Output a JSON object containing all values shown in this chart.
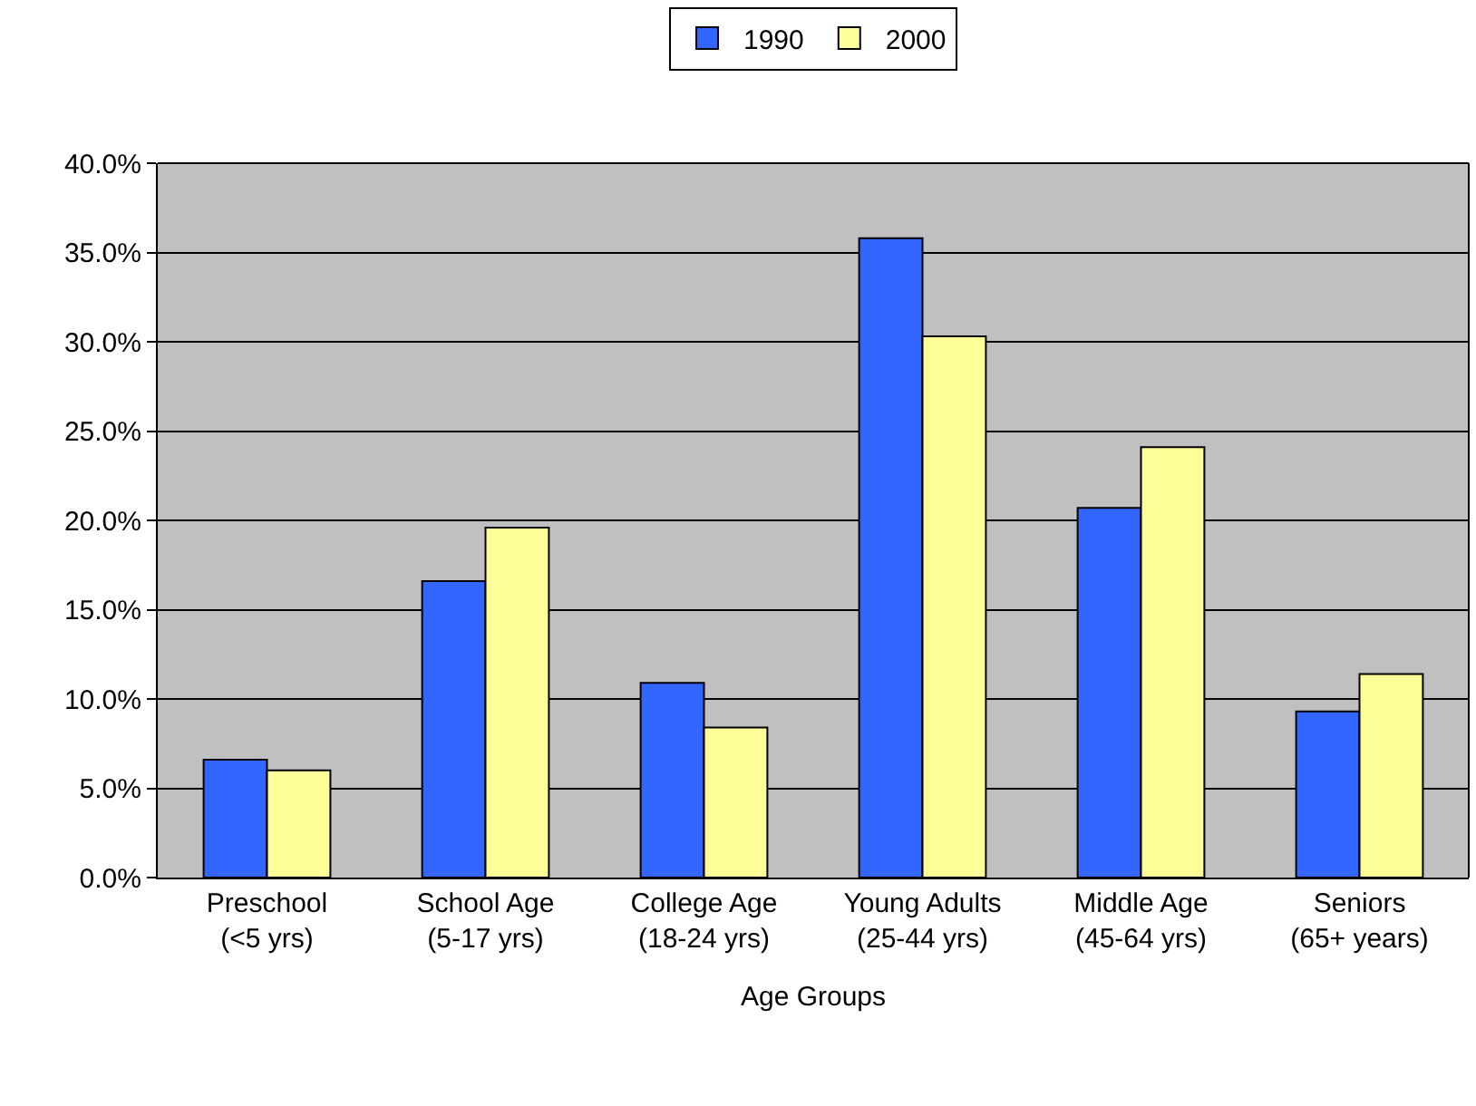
{
  "chart_data": {
    "type": "bar",
    "xlabel": "Age Groups",
    "categories": [
      "Preschool (<5 yrs)",
      "School Age (5-17 yrs)",
      "College Age (18-24 yrs)",
      "Young Adults (25-44 yrs)",
      "Middle Age (45-64 yrs)",
      "Seniors (65+ years)"
    ],
    "series": [
      {
        "name": "1990",
        "color": "#3366ff",
        "values": [
          6.6,
          16.6,
          10.9,
          35.8,
          20.7,
          9.3
        ]
      },
      {
        "name": "2000",
        "color": "#ffff99",
        "values": [
          6.0,
          19.6,
          8.4,
          30.3,
          24.1,
          11.4
        ]
      }
    ],
    "ylim": [
      0,
      40
    ],
    "yticks": [
      {
        "value": 0,
        "label": "0.0%"
      },
      {
        "value": 5,
        "label": "5.0%"
      },
      {
        "value": 10,
        "label": "10.0%"
      },
      {
        "value": 15,
        "label": "15.0%"
      },
      {
        "value": 20,
        "label": "20.0%"
      },
      {
        "value": 25,
        "label": "25.0%"
      },
      {
        "value": 30,
        "label": "30.0%"
      },
      {
        "value": 35,
        "label": "35.0%"
      },
      {
        "value": 40,
        "label": "40.0%"
      }
    ],
    "grid": "y",
    "legend": "top"
  }
}
